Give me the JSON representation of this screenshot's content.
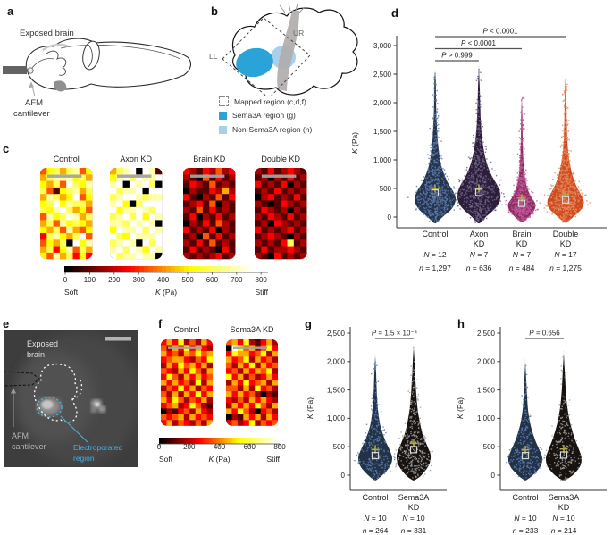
{
  "panel_a": {
    "label": "a",
    "exposed_brain": "Exposed brain",
    "afm_line1": "AFM",
    "afm_line2": "cantilever"
  },
  "panel_b": {
    "label": "b",
    "corner_ll": "LL",
    "corner_ur": "UR",
    "legend": [
      {
        "swatch": "dashed-outline",
        "color": "#ffffff",
        "label": "Mapped region (c,d,f)"
      },
      {
        "swatch": "solid",
        "color": "#2aa3d8",
        "label": "Sema3A region (g)"
      },
      {
        "swatch": "solid",
        "color": "#a9cfe9",
        "label": "Non-Sema3A region (h)"
      }
    ]
  },
  "panel_e": {
    "label": "e",
    "exposed_line1": "Exposed",
    "exposed_line2": "brain",
    "afm_line1": "AFM",
    "afm_line2": "cantilever",
    "electro_line1": "Electroporated",
    "electro_line2": "region",
    "accent": "#3fb3e3"
  },
  "chart_data": [
    {
      "id": "c",
      "panel_label": "c",
      "type": "heatmap",
      "value_max": 800,
      "colorbar": {
        "ticks": [
          "0",
          "100",
          "200",
          "300",
          "400",
          "500",
          "600",
          "700",
          "800"
        ],
        "left_label": "Soft",
        "center_label": "K (Pa)",
        "right_label": "Stiff"
      },
      "maps": [
        {
          "title": "Control",
          "rows": [
            "46757846",
            "57888675",
            "65749768",
            "74167857",
            "58756946",
            "67968775",
            "76897564",
            "48679857",
            "57486765",
            "65748546",
            "37865794",
            "46570968",
            "57368475",
            "64857363"
          ]
        },
        {
          "title": "Axon KD",
          "rows": [
            "57890981",
            "68979889",
            "89098970",
            "97889099",
            "78998788",
            "89607999",
            "96889879",
            "78979698",
            "88798980",
            "69889798",
            "97698889",
            "78980979",
            "89798698",
            "97889880"
          ]
        },
        {
          "title": "Brain KD",
          "rows": [
            "32132423",
            "21041312",
            "13214121",
            "02113252",
            "31021413",
            "12314021",
            "21413121",
            "13021312",
            "02131421",
            "31213021",
            "12041312",
            "21314121",
            "13121031",
            "21212312"
          ]
        },
        {
          "title": "Double KD",
          "rows": [
            "21312321",
            "12021312",
            "31213021",
            "12131212",
            "02312131",
            "21013212",
            "13212021",
            "21321312",
            "12032121",
            "31212312",
            "12321021",
            "21213712",
            "13122321",
            "21031212"
          ]
        }
      ]
    },
    {
      "id": "d",
      "panel_label": "d",
      "type": "violin",
      "ylabel": "K (Pa)",
      "ylim": [
        0,
        3000
      ],
      "yticks": [
        "0",
        "500",
        "1,000",
        "1,500",
        "2,000",
        "2,500",
        "3,000"
      ],
      "categories": [
        {
          "lines": [
            "Control"
          ],
          "N": "N = 12",
          "n": "n = 1,297",
          "color": "#26354f",
          "dot_color": "#5d7aa6",
          "mean": 500,
          "median": 420,
          "width": 1.0,
          "profile": [
            [
              -110,
              0.04
            ],
            [
              0,
              0.36
            ],
            [
              140,
              0.8
            ],
            [
              300,
              1.0
            ],
            [
              450,
              0.88
            ],
            [
              600,
              0.62
            ],
            [
              750,
              0.44
            ],
            [
              900,
              0.3
            ],
            [
              1050,
              0.22
            ],
            [
              1250,
              0.15
            ],
            [
              1500,
              0.1
            ],
            [
              1800,
              0.06
            ],
            [
              2100,
              0.045
            ],
            [
              2400,
              0.03
            ],
            [
              2550,
              0.0
            ]
          ]
        },
        {
          "lines": [
            "Axon",
            "KD"
          ],
          "N": "N = 7",
          "n": "n = 636",
          "color": "#2c1d3b",
          "dot_color": "#6f6386",
          "mean": 500,
          "median": 430,
          "width": 1.05,
          "profile": [
            [
              -110,
              0.04
            ],
            [
              0,
              0.32
            ],
            [
              180,
              0.82
            ],
            [
              350,
              1.0
            ],
            [
              520,
              0.9
            ],
            [
              680,
              0.66
            ],
            [
              820,
              0.48
            ],
            [
              980,
              0.34
            ],
            [
              1150,
              0.24
            ],
            [
              1350,
              0.16
            ],
            [
              1600,
              0.1
            ],
            [
              1900,
              0.065
            ],
            [
              2250,
              0.04
            ],
            [
              2600,
              0.0
            ]
          ]
        },
        {
          "lines": [
            "Brain",
            "KD"
          ],
          "N": "N = 7",
          "n": "n = 484",
          "color": "#8e2f63",
          "dot_color": "#c2589a",
          "mean": 330,
          "median": 240,
          "width": 0.66,
          "profile": [
            [
              -90,
              0.05
            ],
            [
              0,
              0.5
            ],
            [
              120,
              0.92
            ],
            [
              230,
              1.0
            ],
            [
              340,
              0.72
            ],
            [
              460,
              0.48
            ],
            [
              600,
              0.3
            ],
            [
              760,
              0.2
            ],
            [
              950,
              0.13
            ],
            [
              1150,
              0.09
            ],
            [
              1450,
              0.06
            ],
            [
              1800,
              0.04
            ],
            [
              2100,
              0.0
            ]
          ]
        },
        {
          "lines": [
            "Double",
            "KD"
          ],
          "N": "N = 17",
          "n": "n = 1,275",
          "color": "#ce4b21",
          "dot_color": "#e8895c",
          "mean": 390,
          "median": 300,
          "width": 0.88,
          "profile": [
            [
              -100,
              0.05
            ],
            [
              0,
              0.42
            ],
            [
              150,
              0.9
            ],
            [
              290,
              1.0
            ],
            [
              430,
              0.78
            ],
            [
              580,
              0.55
            ],
            [
              730,
              0.38
            ],
            [
              900,
              0.26
            ],
            [
              1100,
              0.16
            ],
            [
              1350,
              0.1
            ],
            [
              1650,
              0.07
            ],
            [
              2000,
              0.05
            ],
            [
              2250,
              0.035
            ],
            [
              2450,
              0.0
            ]
          ]
        }
      ],
      "comparisons": [
        {
          "label": "P < 0.0001",
          "from": 0,
          "to": 3
        },
        {
          "label": "P < 0.0001",
          "from": 0,
          "to": 2
        },
        {
          "label": "P > 0.999",
          "from": 0,
          "to": 1
        }
      ]
    },
    {
      "id": "f",
      "panel_label": "f",
      "type": "heatmap",
      "value_max": 800,
      "colorbar": {
        "ticks": [
          "0",
          "200",
          "400",
          "600",
          "800"
        ],
        "left_label": "Soft",
        "center_label": "K (Pa)",
        "right_label": "Stiff"
      },
      "maps": [
        {
          "title": "Control",
          "rows": [
            "353624253",
            "425363532",
            "534254645",
            "345532436",
            "253645352",
            "432536425",
            "364253534",
            "535342625",
            "243635243",
            "425253635",
            "536424352",
            "345236421",
            "021342532",
            "434525343",
            "352432425"
          ]
        },
        {
          "title": "Sema3A KD",
          "rows": [
            "453621352",
            "096452463",
            "365534625",
            "534625342",
            "425362534",
            "342535462",
            "635242353",
            "253634525",
            "442526342",
            "535342021",
            "324253532",
            "253536425",
            "536420342",
            "021535253",
            "342362434"
          ]
        }
      ]
    },
    {
      "id": "g",
      "panel_label": "g",
      "type": "violin",
      "ylabel": "K (Pa)",
      "ylim": [
        0,
        2500
      ],
      "yticks": [
        "0",
        "500",
        "1,000",
        "1,500",
        "2,000",
        "2,500"
      ],
      "categories": [
        {
          "lines": [
            "Control"
          ],
          "N": "N = 10",
          "n": "n = 264",
          "color": "#223349",
          "dot_color": "#5f7cab",
          "mean": 450,
          "median": 345,
          "width": 1.0,
          "profile": [
            [
              -90,
              0.05
            ],
            [
              0,
              0.42
            ],
            [
              150,
              0.86
            ],
            [
              300,
              1.0
            ],
            [
              450,
              0.84
            ],
            [
              600,
              0.6
            ],
            [
              750,
              0.42
            ],
            [
              900,
              0.28
            ],
            [
              1100,
              0.18
            ],
            [
              1300,
              0.12
            ],
            [
              1550,
              0.08
            ],
            [
              1800,
              0.05
            ],
            [
              2100,
              0.0
            ]
          ]
        },
        {
          "lines": [
            "Sema3A",
            "KD"
          ],
          "N": "N = 10",
          "n": "n = 331",
          "color": "#18130f",
          "dot_color": "#9f9f9f",
          "mean": 560,
          "median": 450,
          "width": 1.0,
          "profile": [
            [
              -90,
              0.05
            ],
            [
              0,
              0.46
            ],
            [
              180,
              0.9
            ],
            [
              350,
              1.0
            ],
            [
              500,
              0.82
            ],
            [
              650,
              0.62
            ],
            [
              800,
              0.46
            ],
            [
              1000,
              0.32
            ],
            [
              1200,
              0.22
            ],
            [
              1450,
              0.15
            ],
            [
              1650,
              0.11
            ],
            [
              1850,
              0.07
            ],
            [
              2000,
              0.05
            ],
            [
              2250,
              0.0
            ]
          ]
        }
      ],
      "comparisons": [
        {
          "label": "P = 1.5 × 10⁻⁴",
          "from": 0,
          "to": 1
        }
      ]
    },
    {
      "id": "h",
      "panel_label": "h",
      "type": "violin",
      "ylabel": "K (Pa)",
      "ylim": [
        0,
        2500
      ],
      "yticks": [
        "0",
        "500",
        "1,000",
        "1,500",
        "2,000",
        "2,500"
      ],
      "categories": [
        {
          "lines": [
            "Control"
          ],
          "N": "N = 10",
          "n": "n = 233",
          "color": "#223349",
          "dot_color": "#5f7cab",
          "mean": 445,
          "median": 345,
          "width": 1.0,
          "profile": [
            [
              -90,
              0.05
            ],
            [
              0,
              0.44
            ],
            [
              150,
              0.88
            ],
            [
              300,
              1.0
            ],
            [
              450,
              0.82
            ],
            [
              600,
              0.6
            ],
            [
              780,
              0.4
            ],
            [
              950,
              0.26
            ],
            [
              1150,
              0.16
            ],
            [
              1400,
              0.1
            ],
            [
              1650,
              0.06
            ],
            [
              2000,
              0.0
            ]
          ]
        },
        {
          "lines": [
            "Sema3A",
            "KD"
          ],
          "N": "N = 10",
          "n": "n = 214",
          "color": "#18130f",
          "dot_color": "#9f9f9f",
          "mean": 460,
          "median": 355,
          "width": 1.05,
          "profile": [
            [
              -90,
              0.06
            ],
            [
              0,
              0.5
            ],
            [
              150,
              0.9
            ],
            [
              300,
              1.0
            ],
            [
              460,
              0.84
            ],
            [
              620,
              0.64
            ],
            [
              800,
              0.46
            ],
            [
              1000,
              0.3
            ],
            [
              1250,
              0.18
            ],
            [
              1500,
              0.11
            ],
            [
              1800,
              0.06
            ],
            [
              2150,
              0.0
            ]
          ]
        }
      ],
      "comparisons": [
        {
          "label": "P = 0.656",
          "from": 0,
          "to": 1
        }
      ]
    }
  ]
}
